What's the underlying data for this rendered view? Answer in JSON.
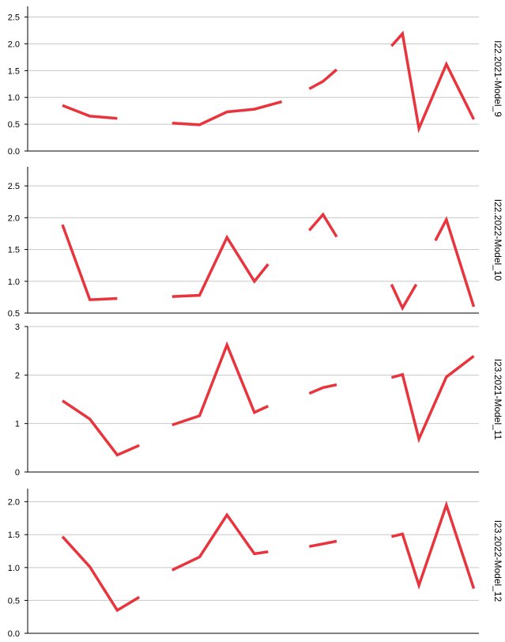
{
  "colors": {
    "series": "#e8343c",
    "grid": "#c8c8c8",
    "axis": "#000000"
  },
  "chart_data": {
    "type": "line",
    "grid": true,
    "x": [
      1,
      2,
      3,
      4,
      5,
      6,
      7,
      8,
      9,
      10,
      11,
      12,
      13,
      14,
      15
    ],
    "panels": [
      {
        "label": "I22.2021-Model_9",
        "ylim": [
          0,
          2.7
        ],
        "ticks": [
          0.0,
          0.5,
          1.0,
          1.5,
          2.0,
          2.5
        ],
        "tick_labels": [
          "0.0",
          "0.5",
          "1.0",
          "1.5",
          "2.0",
          "2.5"
        ],
        "segments": [
          [
            [
              1,
              0.85
            ],
            [
              2,
              0.65
            ],
            [
              3,
              0.61
            ]
          ],
          [
            [
              5,
              0.52
            ],
            [
              6,
              0.49
            ],
            [
              7,
              0.73
            ],
            [
              8,
              0.78
            ],
            [
              9,
              0.92
            ]
          ],
          [
            [
              10,
              1.16
            ],
            [
              10.5,
              1.3
            ],
            [
              11,
              1.52
            ]
          ],
          [
            [
              13,
              1.96
            ],
            [
              13.4,
              2.19
            ],
            [
              14,
              0.42
            ],
            [
              15,
              1.62
            ],
            [
              16,
              0.59
            ]
          ]
        ]
      },
      {
        "label": "I22.2022-Model_10",
        "ylim": [
          0.5,
          2.8
        ],
        "ticks": [
          0.5,
          1.0,
          1.5,
          2.0,
          2.5
        ],
        "tick_labels": [
          "0.5",
          "1.0",
          "1.5",
          "2.0",
          "2.5"
        ],
        "segments": [
          [
            [
              1,
              1.89
            ],
            [
              2,
              0.71
            ],
            [
              3,
              0.73
            ]
          ],
          [
            [
              5,
              0.76
            ],
            [
              6,
              0.78
            ],
            [
              7,
              1.69
            ],
            [
              8,
              1.0
            ],
            [
              8.5,
              1.27
            ]
          ],
          [
            [
              10,
              1.8
            ],
            [
              10.5,
              2.05
            ],
            [
              11,
              1.7
            ]
          ],
          [
            [
              13,
              0.95
            ],
            [
              13.4,
              0.58
            ],
            [
              13.9,
              0.95
            ]
          ],
          [
            [
              14.6,
              1.64
            ],
            [
              15,
              1.97
            ],
            [
              16,
              0.6
            ]
          ]
        ]
      },
      {
        "label": "I23.2021-Model_11",
        "ylim": [
          0,
          3.0
        ],
        "ticks": [
          0,
          1,
          2,
          3
        ],
        "tick_labels": [
          "0",
          "1",
          "2",
          "3"
        ],
        "segments": [
          [
            [
              1,
              1.47
            ],
            [
              2,
              1.09
            ],
            [
              3,
              0.35
            ],
            [
              3.8,
              0.55
            ]
          ],
          [
            [
              5,
              0.97
            ],
            [
              6,
              1.16
            ],
            [
              7,
              2.62
            ],
            [
              8,
              1.23
            ],
            [
              8.5,
              1.36
            ]
          ],
          [
            [
              10,
              1.62
            ],
            [
              10.5,
              1.74
            ],
            [
              11,
              1.8
            ]
          ],
          [
            [
              13,
              1.95
            ],
            [
              13.4,
              2.01
            ],
            [
              14,
              0.68
            ],
            [
              15,
              1.96
            ],
            [
              16,
              2.39
            ]
          ]
        ]
      },
      {
        "label": "I23.2022-Model_12",
        "ylim": [
          0,
          2.2
        ],
        "ticks": [
          0.0,
          0.5,
          1.0,
          1.5,
          2.0
        ],
        "tick_labels": [
          "0.0",
          "0.5",
          "1.0",
          "1.5",
          "2.0"
        ],
        "segments": [
          [
            [
              1,
              1.47
            ],
            [
              2,
              1.01
            ],
            [
              3,
              0.35
            ],
            [
              3.8,
              0.55
            ]
          ],
          [
            [
              5,
              0.96
            ],
            [
              6,
              1.16
            ],
            [
              7,
              1.8
            ],
            [
              8,
              1.21
            ],
            [
              8.5,
              1.24
            ]
          ],
          [
            [
              10,
              1.32
            ],
            [
              10.5,
              1.36
            ],
            [
              11,
              1.4
            ]
          ],
          [
            [
              13,
              1.47
            ],
            [
              13.4,
              1.51
            ],
            [
              14,
              0.73
            ],
            [
              15,
              1.95
            ],
            [
              16,
              0.68
            ]
          ]
        ]
      }
    ]
  }
}
